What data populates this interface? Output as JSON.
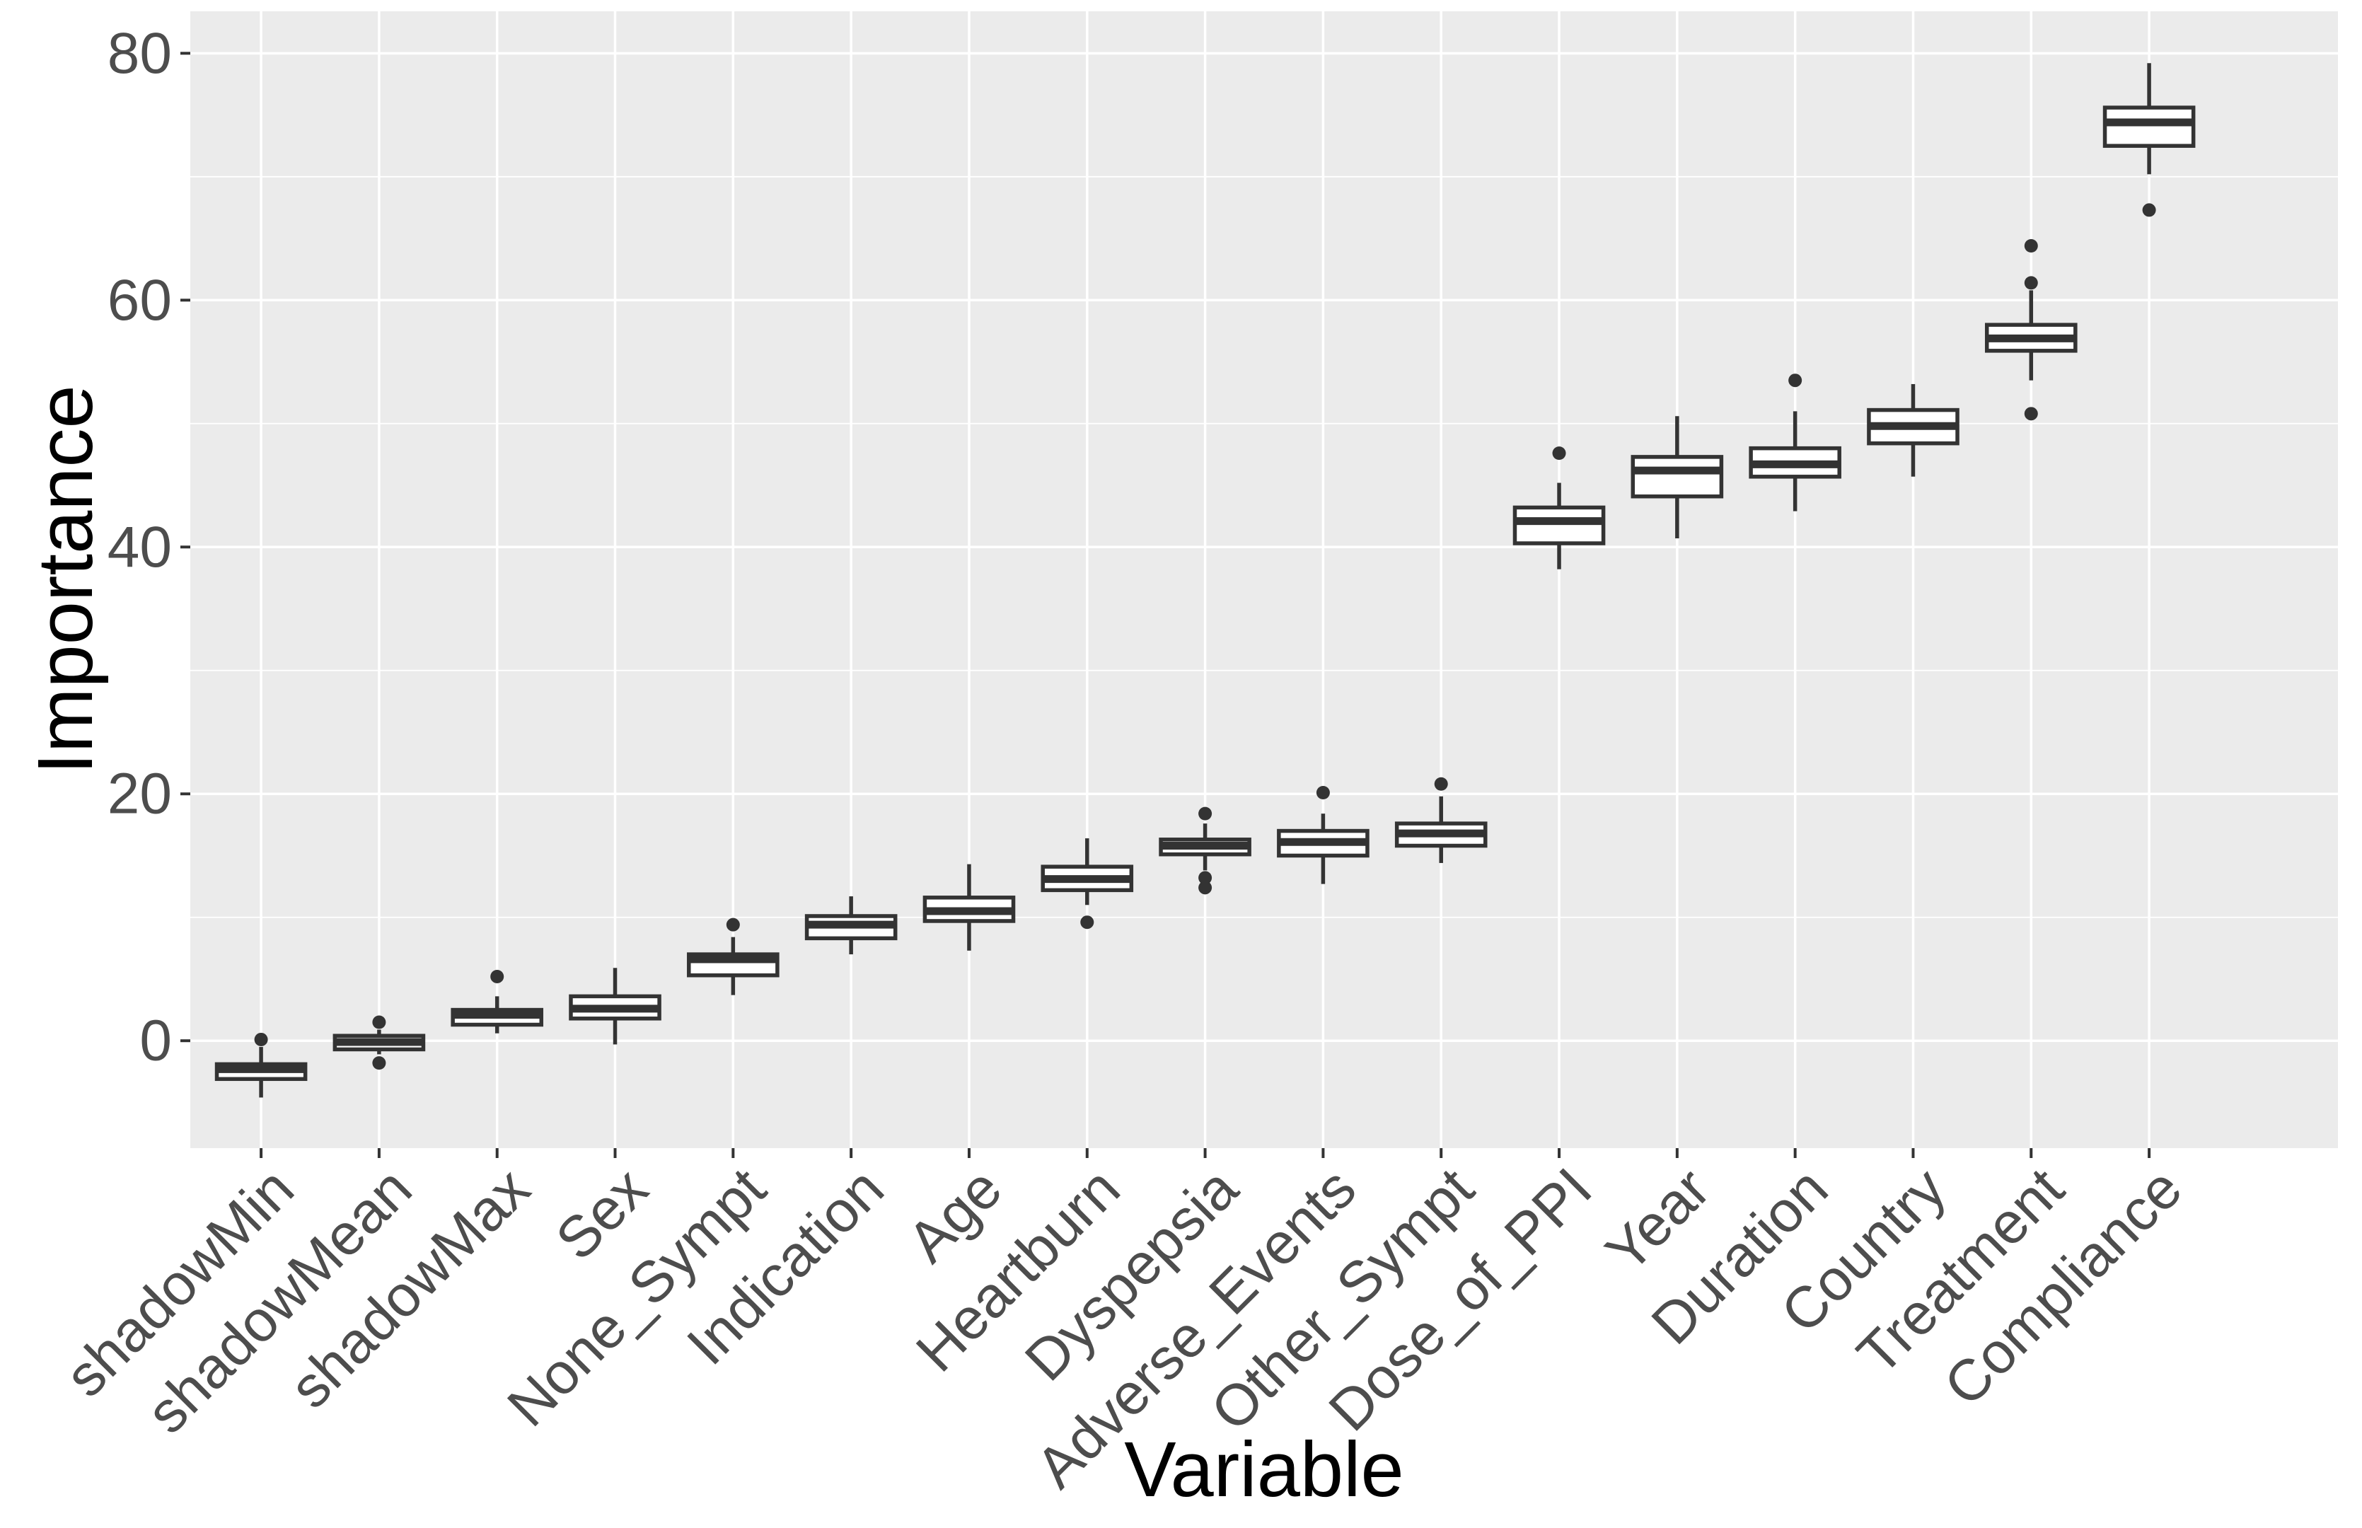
{
  "axes": {
    "x_title": "Variable",
    "y_title": "Importance",
    "y_major_ticks": [
      0,
      20,
      40,
      60,
      80
    ],
    "y_minor_ticks": [
      10,
      30,
      50,
      70
    ]
  },
  "colors": {
    "panel_bg": "#EBEBEB",
    "grid": "#FFFFFF",
    "box_stroke": "#333333",
    "box_fill": "#FFFFFF",
    "outlier": "#333333",
    "tick_text": "#4D4D4D",
    "title_text": "#000000",
    "tick_mark": "#333333"
  },
  "chart_data": {
    "type": "boxplot",
    "title": "",
    "xlabel": "Variable",
    "ylabel": "Importance",
    "ylim": [
      -8.7,
      83.4
    ],
    "y_major_ticks": [
      0,
      20,
      40,
      60,
      80
    ],
    "y_minor_ticks": [
      10,
      30,
      50,
      70
    ],
    "grid": true,
    "legend": false,
    "categories": [
      "shadowMin",
      "shadowMean",
      "shadowMax",
      "Sex",
      "None_Sympt",
      "Indication",
      "Age",
      "Heartburn",
      "Dyspepsia",
      "Adverse_Events",
      "Other_Sympt",
      "Dose_of_PPI",
      "Year",
      "Duration",
      "Country",
      "Treatment",
      "Compliance"
    ],
    "boxes": [
      {
        "name": "shadowMin",
        "whisker_low": -4.6,
        "q1": -3.1,
        "median": -2.3,
        "q3": -1.9,
        "whisker_high": -0.5,
        "outliers": [
          0.1
        ]
      },
      {
        "name": "shadowMean",
        "whisker_low": -1.1,
        "q1": -0.7,
        "median": -0.1,
        "q3": 0.4,
        "whisker_high": 0.9,
        "outliers": [
          1.5,
          -1.8
        ]
      },
      {
        "name": "shadowMax",
        "whisker_low": 0.6,
        "q1": 1.3,
        "median": 2.1,
        "q3": 2.5,
        "whisker_high": 3.6,
        "outliers": [
          5.2
        ]
      },
      {
        "name": "Sex",
        "whisker_low": -0.3,
        "q1": 1.8,
        "median": 2.6,
        "q3": 3.6,
        "whisker_high": 5.9,
        "outliers": []
      },
      {
        "name": "None_Sympt",
        "whisker_low": 3.7,
        "q1": 5.3,
        "median": 6.6,
        "q3": 7.0,
        "whisker_high": 8.4,
        "outliers": [
          9.4
        ]
      },
      {
        "name": "Indication",
        "whisker_low": 7.0,
        "q1": 8.3,
        "median": 9.4,
        "q3": 10.1,
        "whisker_high": 11.7,
        "outliers": []
      },
      {
        "name": "Age",
        "whisker_low": 7.3,
        "q1": 9.7,
        "median": 10.5,
        "q3": 11.6,
        "whisker_high": 14.3,
        "outliers": []
      },
      {
        "name": "Heartburn",
        "whisker_low": 11.0,
        "q1": 12.2,
        "median": 13.1,
        "q3": 14.1,
        "whisker_high": 16.4,
        "outliers": [
          9.6
        ]
      },
      {
        "name": "Dyspepsia",
        "whisker_low": 13.8,
        "q1": 15.1,
        "median": 15.8,
        "q3": 16.3,
        "whisker_high": 17.6,
        "outliers": [
          18.4,
          13.2,
          12.4
        ]
      },
      {
        "name": "Adverse_Events",
        "whisker_low": 12.7,
        "q1": 15.0,
        "median": 16.1,
        "q3": 17.0,
        "whisker_high": 18.4,
        "outliers": [
          20.1
        ]
      },
      {
        "name": "Other_Sympt",
        "whisker_low": 14.4,
        "q1": 15.8,
        "median": 16.8,
        "q3": 17.6,
        "whisker_high": 19.8,
        "outliers": [
          20.8
        ]
      },
      {
        "name": "Dose_of_PPI",
        "whisker_low": 38.2,
        "q1": 40.3,
        "median": 42.1,
        "q3": 43.2,
        "whisker_high": 45.2,
        "outliers": [
          47.6
        ]
      },
      {
        "name": "Year",
        "whisker_low": 40.7,
        "q1": 44.1,
        "median": 46.2,
        "q3": 47.3,
        "whisker_high": 50.6,
        "outliers": []
      },
      {
        "name": "Duration",
        "whisker_low": 42.9,
        "q1": 45.7,
        "median": 46.7,
        "q3": 48.0,
        "whisker_high": 51.0,
        "outliers": [
          53.5
        ]
      },
      {
        "name": "Country",
        "whisker_low": 45.7,
        "q1": 48.4,
        "median": 49.8,
        "q3": 51.1,
        "whisker_high": 53.2,
        "outliers": []
      },
      {
        "name": "Treatment",
        "whisker_low": 53.5,
        "q1": 55.9,
        "median": 56.9,
        "q3": 58.0,
        "whisker_high": 60.8,
        "outliers": [
          64.4,
          61.4,
          50.8
        ]
      },
      {
        "name": "Compliance",
        "whisker_low": 70.2,
        "q1": 72.5,
        "median": 74.4,
        "q3": 75.6,
        "whisker_high": 79.2,
        "outliers": [
          67.3
        ]
      }
    ]
  }
}
